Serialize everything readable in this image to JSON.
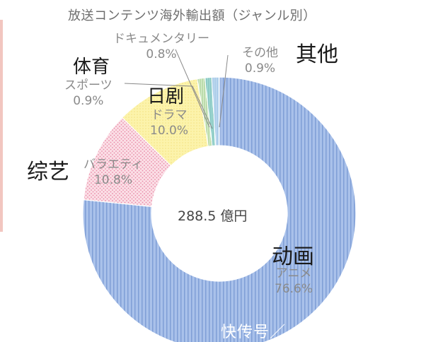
{
  "chart_data": {
    "type": "pie",
    "title": "放送コンテンツ海外輸出額（ジャンル別）",
    "total_label": "288.5 億円",
    "slices": [
      {
        "label": "アニメ",
        "value_label": "76.6%",
        "value": 76.6,
        "zh": "动画",
        "color": "#9db8e6"
      },
      {
        "label": "バラエティ",
        "value_label": "10.8%",
        "value": 10.8,
        "zh": "综艺",
        "color": "#f6c6d2"
      },
      {
        "label": "ドラマ",
        "value_label": "10.0%",
        "value": 10.0,
        "zh": "日剧",
        "color": "#fbef9c"
      },
      {
        "label": "スポーツ",
        "value_label": "0.9%",
        "value": 0.9,
        "zh": "体育",
        "color": "#cfe7c2"
      },
      {
        "label": "ドキュメンタリー",
        "value_label": "0.8%",
        "value": 0.8,
        "zh": "",
        "color": "#9fd4d0"
      },
      {
        "label": "その他",
        "value_label": "0.9%",
        "value": 0.9,
        "zh": "其他",
        "color": "#b9d6ef"
      }
    ]
  },
  "watermark": "快传号／"
}
